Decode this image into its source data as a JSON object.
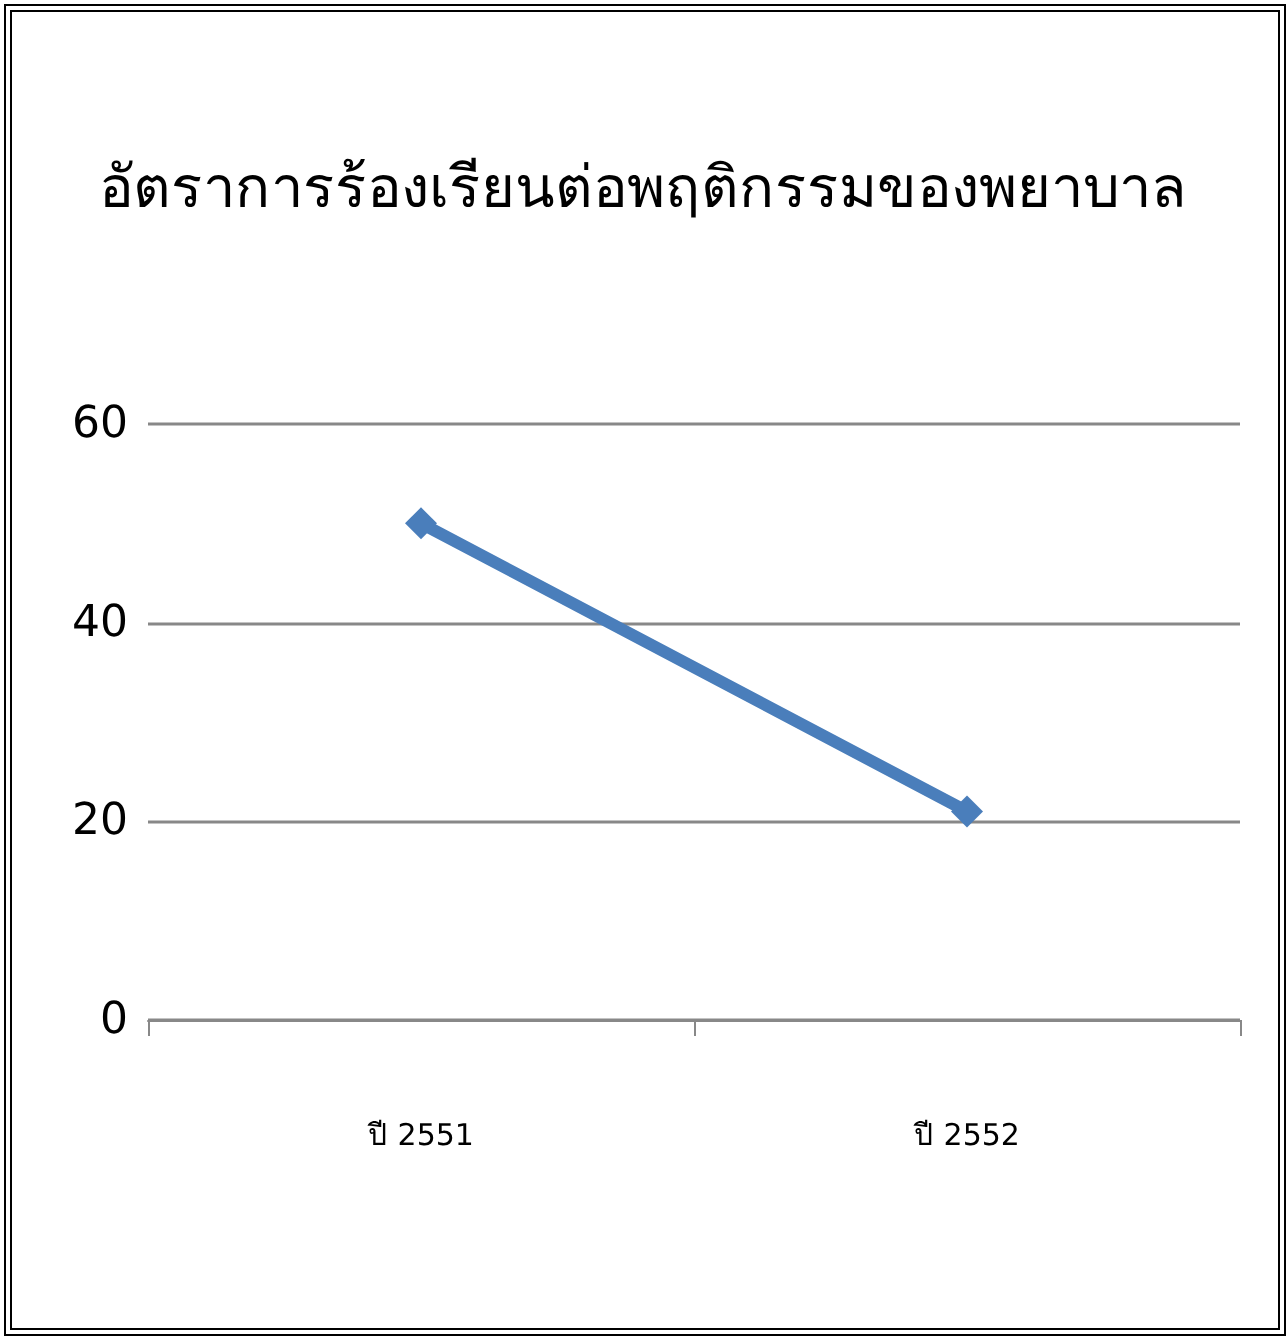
{
  "chart_data": {
    "type": "line",
    "title": "อัตราการร้องเรียนต่อพฤติกรรมของพยาบาล",
    "categories": [
      "ปี 2551",
      "ปี 2552"
    ],
    "series": [
      {
        "color": "#4a7ebb",
        "values": [
          50,
          21
        ]
      }
    ],
    "ylim": [
      0,
      60
    ],
    "yticks": [
      0,
      20,
      40,
      60
    ],
    "grid": "y",
    "marker": "diamond",
    "line_style": "solid"
  }
}
